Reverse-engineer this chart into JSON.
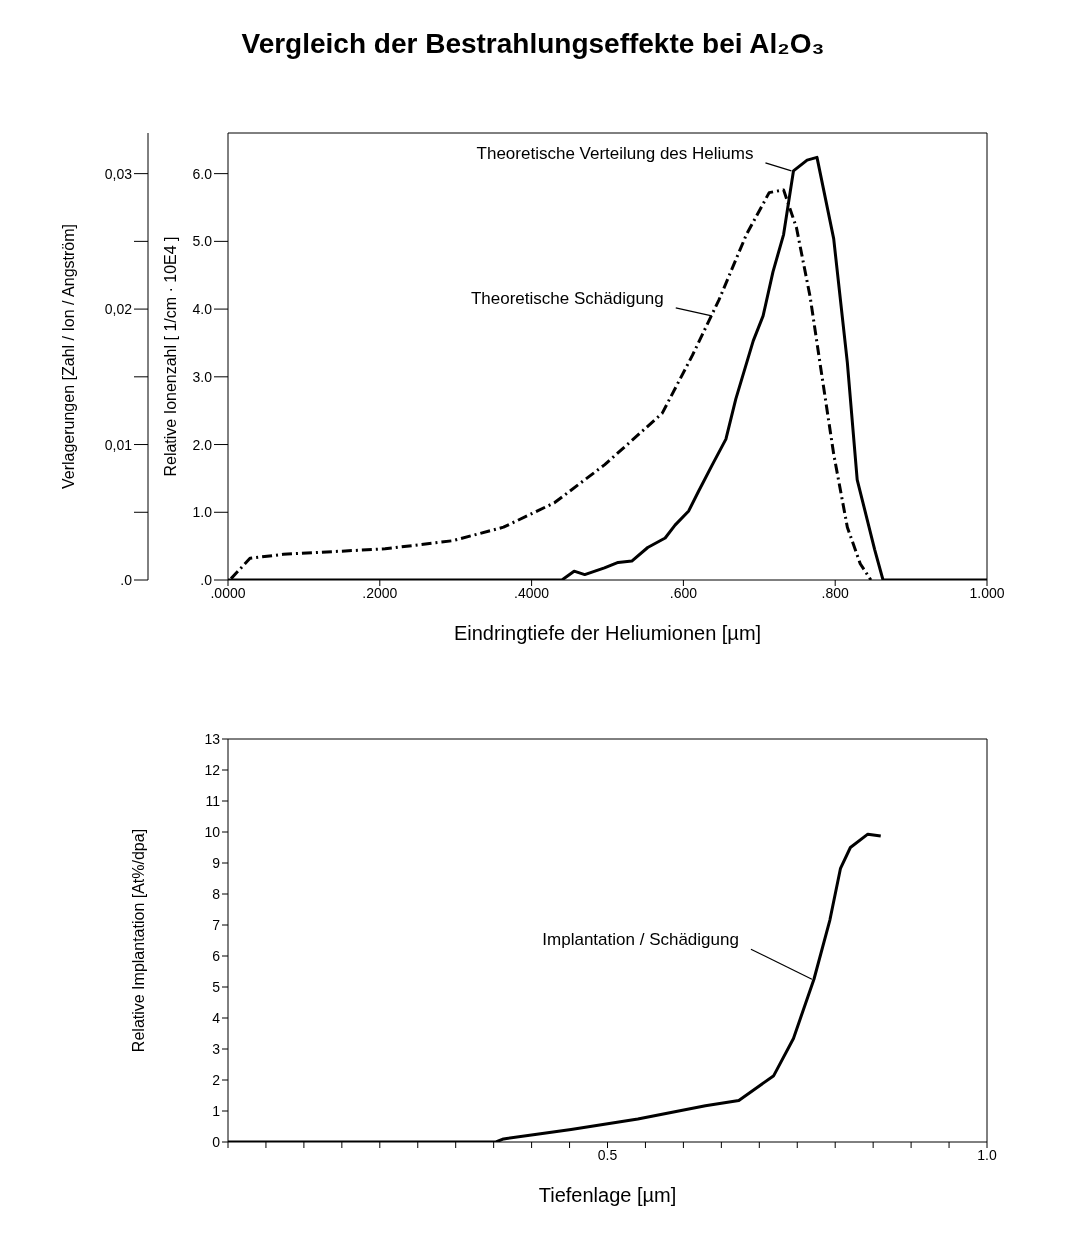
{
  "chart_data": [
    {
      "type": "line",
      "title": "Vergleich der Bestrahlungseffekte  bei Al₂O₃",
      "xlabel": "Eindringtiefe der Heliumionen  [µm]",
      "ylabel": "Relative Ionenzahl  [ 1/cm · 10E4 ]",
      "y2label": "Verlagerungen [Zahl / Ion / Angström]",
      "xlim": [
        0,
        1
      ],
      "xticks": [
        {
          "value": 0,
          "label": ".0000"
        },
        {
          "value": 0.2,
          "label": ".2000"
        },
        {
          "value": 0.4,
          "label": ".4000"
        },
        {
          "value": 0.6,
          "label": ".600"
        },
        {
          "value": 0.8,
          "label": ".800"
        },
        {
          "value": 1,
          "label": "1.000"
        }
      ],
      "ylim": [
        0,
        6.6
      ],
      "yticks": [
        {
          "value": 0,
          "label": ".0"
        },
        {
          "value": 1,
          "label": "1.0"
        },
        {
          "value": 2,
          "label": "2.0"
        },
        {
          "value": 3,
          "label": "3.0"
        },
        {
          "value": 4,
          "label": "4.0"
        },
        {
          "value": 5,
          "label": "5.0"
        },
        {
          "value": 6,
          "label": "6.0"
        }
      ],
      "y2lim": [
        0,
        0.033
      ],
      "y2ticks": [
        {
          "value": 0,
          "label": ".0"
        },
        {
          "value": 0.005,
          "label": null
        },
        {
          "value": 0.01,
          "label": "0,01"
        },
        {
          "value": 0.015,
          "label": null
        },
        {
          "value": 0.02,
          "label": "0,02"
        },
        {
          "value": 0.025,
          "label": null
        },
        {
          "value": 0.03,
          "label": "0,03"
        }
      ],
      "series": [
        {
          "color": "#000000",
          "line_style": "solid",
          "x": [
            0,
            0.2,
            0.44,
            0.456,
            0.47,
            0.496,
            0.514,
            0.532,
            0.553,
            0.576,
            0.589,
            0.607,
            0.62,
            0.638,
            0.656,
            0.669,
            0.692,
            0.705,
            0.718,
            0.732,
            0.745,
            0.763,
            0.776,
            0.798,
            0.816,
            0.829,
            0.852,
            0.863,
            1
          ],
          "values": [
            0,
            0,
            0,
            0.13,
            0.08,
            0.18,
            0.26,
            0.28,
            0.48,
            0.62,
            0.81,
            1.02,
            1.31,
            1.7,
            2.08,
            2.67,
            3.53,
            3.9,
            4.55,
            5.1,
            6.04,
            6.2,
            6.24,
            5.04,
            3.21,
            1.48,
            0.45,
            0,
            0
          ]
        },
        {
          "color": "#000000",
          "line_style": "dashed",
          "axis": "y2",
          "x": [
            0.004,
            0.029,
            0.073,
            0.207,
            0.296,
            0.363,
            0.43,
            0.496,
            0.572,
            0.612,
            0.647,
            0.683,
            0.713,
            0.732,
            0.749,
            0.767,
            0.78,
            0.798,
            0.816,
            0.833,
            0.847
          ],
          "values": [
            0.0001,
            0.0016,
            0.0019,
            0.0023,
            0.0029,
            0.0039,
            0.0057,
            0.0085,
            0.0123,
            0.0166,
            0.0207,
            0.0255,
            0.0286,
            0.0288,
            0.026,
            0.0209,
            0.016,
            0.0093,
            0.0039,
            0.0012,
            0
          ]
        }
      ],
      "annotations": [
        {
          "text": "Theoretische Verteilung des Heliums",
          "x": 0.745,
          "y": 6.04
        },
        {
          "text": "Theoretische Schädigung",
          "x": 0.64,
          "y": 3.9
        }
      ]
    },
    {
      "type": "line",
      "xlabel": "Tiefenlage  [µm]",
      "ylabel": "Relative Implantation  [At%/dpa]",
      "xlim": [
        0,
        1
      ],
      "xticks": [
        {
          "value": 0,
          "label": null
        },
        {
          "value": 0.05,
          "label": null
        },
        {
          "value": 0.1,
          "label": null
        },
        {
          "value": 0.15,
          "label": null
        },
        {
          "value": 0.2,
          "label": null
        },
        {
          "value": 0.25,
          "label": null
        },
        {
          "value": 0.3,
          "label": null
        },
        {
          "value": 0.35,
          "label": null
        },
        {
          "value": 0.4,
          "label": null
        },
        {
          "value": 0.45,
          "label": null
        },
        {
          "value": 0.5,
          "label": "0.5"
        },
        {
          "value": 0.55,
          "label": null
        },
        {
          "value": 0.6,
          "label": null
        },
        {
          "value": 0.65,
          "label": null
        },
        {
          "value": 0.7,
          "label": null
        },
        {
          "value": 0.75,
          "label": null
        },
        {
          "value": 0.8,
          "label": null
        },
        {
          "value": 0.85,
          "label": null
        },
        {
          "value": 0.9,
          "label": null
        },
        {
          "value": 0.95,
          "label": null
        },
        {
          "value": 1,
          "label": "1.0"
        }
      ],
      "ylim": [
        0,
        13
      ],
      "yticks": [
        0,
        1,
        2,
        3,
        4,
        5,
        6,
        7,
        8,
        9,
        10,
        11,
        12,
        13
      ],
      "series": [
        {
          "color": "#000000",
          "line_style": "solid",
          "x": [
            0,
            0.2,
            0.353,
            0.363,
            0.407,
            0.452,
            0.54,
            0.629,
            0.673,
            0.719,
            0.745,
            0.772,
            0.793,
            0.807,
            0.82,
            0.843,
            0.86
          ],
          "values": [
            0,
            0,
            0,
            0.1,
            0.25,
            0.4,
            0.74,
            1.17,
            1.34,
            2.14,
            3.34,
            5.25,
            7.16,
            8.83,
            9.5,
            9.93,
            9.87
          ]
        }
      ],
      "annotations": [
        {
          "text": "Implantation / Schädigung",
          "x": 0.772,
          "y": 5.25
        }
      ]
    }
  ]
}
